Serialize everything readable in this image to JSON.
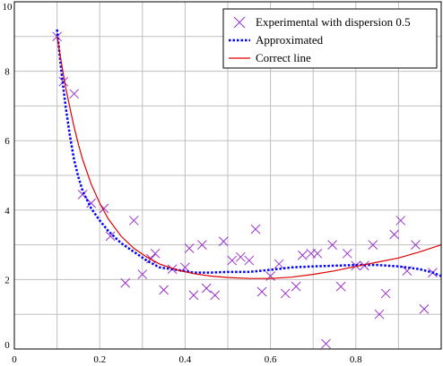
{
  "chart_data": {
    "type": "scatter",
    "title": "",
    "xlabel": "",
    "ylabel": "",
    "xlim": [
      0,
      1
    ],
    "ylim": [
      0,
      10
    ],
    "x_ticks": [
      "0",
      "0.2",
      "0.4",
      "0.6",
      "0.8"
    ],
    "y_ticks": [
      "0",
      "2",
      "4",
      "6",
      "8",
      "10"
    ],
    "grid": true,
    "legend_position": "top-right",
    "series": [
      {
        "name": "Experimental with dispersion 0.5",
        "kind": "scatter-x",
        "color": "#9933cc",
        "points": [
          [
            0.1,
            9.0
          ],
          [
            0.115,
            7.7
          ],
          [
            0.14,
            7.35
          ],
          [
            0.16,
            4.45
          ],
          [
            0.18,
            4.2
          ],
          [
            0.21,
            4.05
          ],
          [
            0.225,
            3.25
          ],
          [
            0.26,
            1.9
          ],
          [
            0.28,
            3.7
          ],
          [
            0.3,
            2.15
          ],
          [
            0.32,
            2.6
          ],
          [
            0.33,
            2.75
          ],
          [
            0.35,
            1.7
          ],
          [
            0.37,
            2.3
          ],
          [
            0.4,
            2.35
          ],
          [
            0.41,
            2.9
          ],
          [
            0.42,
            1.55
          ],
          [
            0.44,
            3.0
          ],
          [
            0.45,
            1.75
          ],
          [
            0.47,
            1.55
          ],
          [
            0.49,
            3.1
          ],
          [
            0.51,
            2.55
          ],
          [
            0.53,
            2.65
          ],
          [
            0.55,
            2.55
          ],
          [
            0.565,
            3.45
          ],
          [
            0.58,
            1.65
          ],
          [
            0.6,
            2.1
          ],
          [
            0.62,
            2.45
          ],
          [
            0.635,
            1.6
          ],
          [
            0.66,
            1.8
          ],
          [
            0.675,
            2.7
          ],
          [
            0.695,
            2.75
          ],
          [
            0.71,
            2.75
          ],
          [
            0.73,
            0.15
          ],
          [
            0.745,
            3.0
          ],
          [
            0.765,
            1.8
          ],
          [
            0.78,
            2.75
          ],
          [
            0.8,
            2.4
          ],
          [
            0.82,
            2.4
          ],
          [
            0.84,
            3.0
          ],
          [
            0.855,
            1.0
          ],
          [
            0.87,
            1.6
          ],
          [
            0.89,
            3.3
          ],
          [
            0.905,
            3.7
          ],
          [
            0.92,
            2.25
          ],
          [
            0.94,
            3.0
          ],
          [
            0.96,
            1.15
          ],
          [
            0.98,
            2.2
          ]
        ]
      },
      {
        "name": "Approximated",
        "kind": "dotted-line",
        "color": "#0000ff",
        "points": [
          [
            0.1,
            9.2
          ],
          [
            0.11,
            8.0
          ],
          [
            0.12,
            7.0
          ],
          [
            0.13,
            6.15
          ],
          [
            0.14,
            5.45
          ],
          [
            0.15,
            4.95
          ],
          [
            0.16,
            4.55
          ],
          [
            0.18,
            4.05
          ],
          [
            0.2,
            3.7
          ],
          [
            0.22,
            3.4
          ],
          [
            0.25,
            3.05
          ],
          [
            0.28,
            2.8
          ],
          [
            0.31,
            2.55
          ],
          [
            0.34,
            2.35
          ],
          [
            0.38,
            2.28
          ],
          [
            0.42,
            2.2
          ],
          [
            0.46,
            2.2
          ],
          [
            0.5,
            2.22
          ],
          [
            0.55,
            2.22
          ],
          [
            0.6,
            2.28
          ],
          [
            0.65,
            2.35
          ],
          [
            0.7,
            2.38
          ],
          [
            0.75,
            2.4
          ],
          [
            0.8,
            2.42
          ],
          [
            0.85,
            2.42
          ],
          [
            0.9,
            2.38
          ],
          [
            0.95,
            2.3
          ],
          [
            0.98,
            2.2
          ],
          [
            1.0,
            2.1
          ]
        ]
      },
      {
        "name": "Correct line",
        "kind": "line",
        "color": "#dd0000",
        "points": [
          [
            0.1,
            9.0
          ],
          [
            0.11,
            8.25
          ],
          [
            0.12,
            7.55
          ],
          [
            0.13,
            6.95
          ],
          [
            0.14,
            6.4
          ],
          [
            0.15,
            5.9
          ],
          [
            0.16,
            5.45
          ],
          [
            0.18,
            4.75
          ],
          [
            0.2,
            4.2
          ],
          [
            0.22,
            3.75
          ],
          [
            0.25,
            3.25
          ],
          [
            0.28,
            2.9
          ],
          [
            0.31,
            2.65
          ],
          [
            0.34,
            2.45
          ],
          [
            0.38,
            2.28
          ],
          [
            0.42,
            2.17
          ],
          [
            0.46,
            2.1
          ],
          [
            0.5,
            2.06
          ],
          [
            0.55,
            2.03
          ],
          [
            0.6,
            2.03
          ],
          [
            0.65,
            2.07
          ],
          [
            0.7,
            2.15
          ],
          [
            0.75,
            2.25
          ],
          [
            0.8,
            2.38
          ],
          [
            0.85,
            2.5
          ],
          [
            0.9,
            2.62
          ],
          [
            0.95,
            2.8
          ],
          [
            1.0,
            3.0
          ]
        ]
      }
    ]
  }
}
